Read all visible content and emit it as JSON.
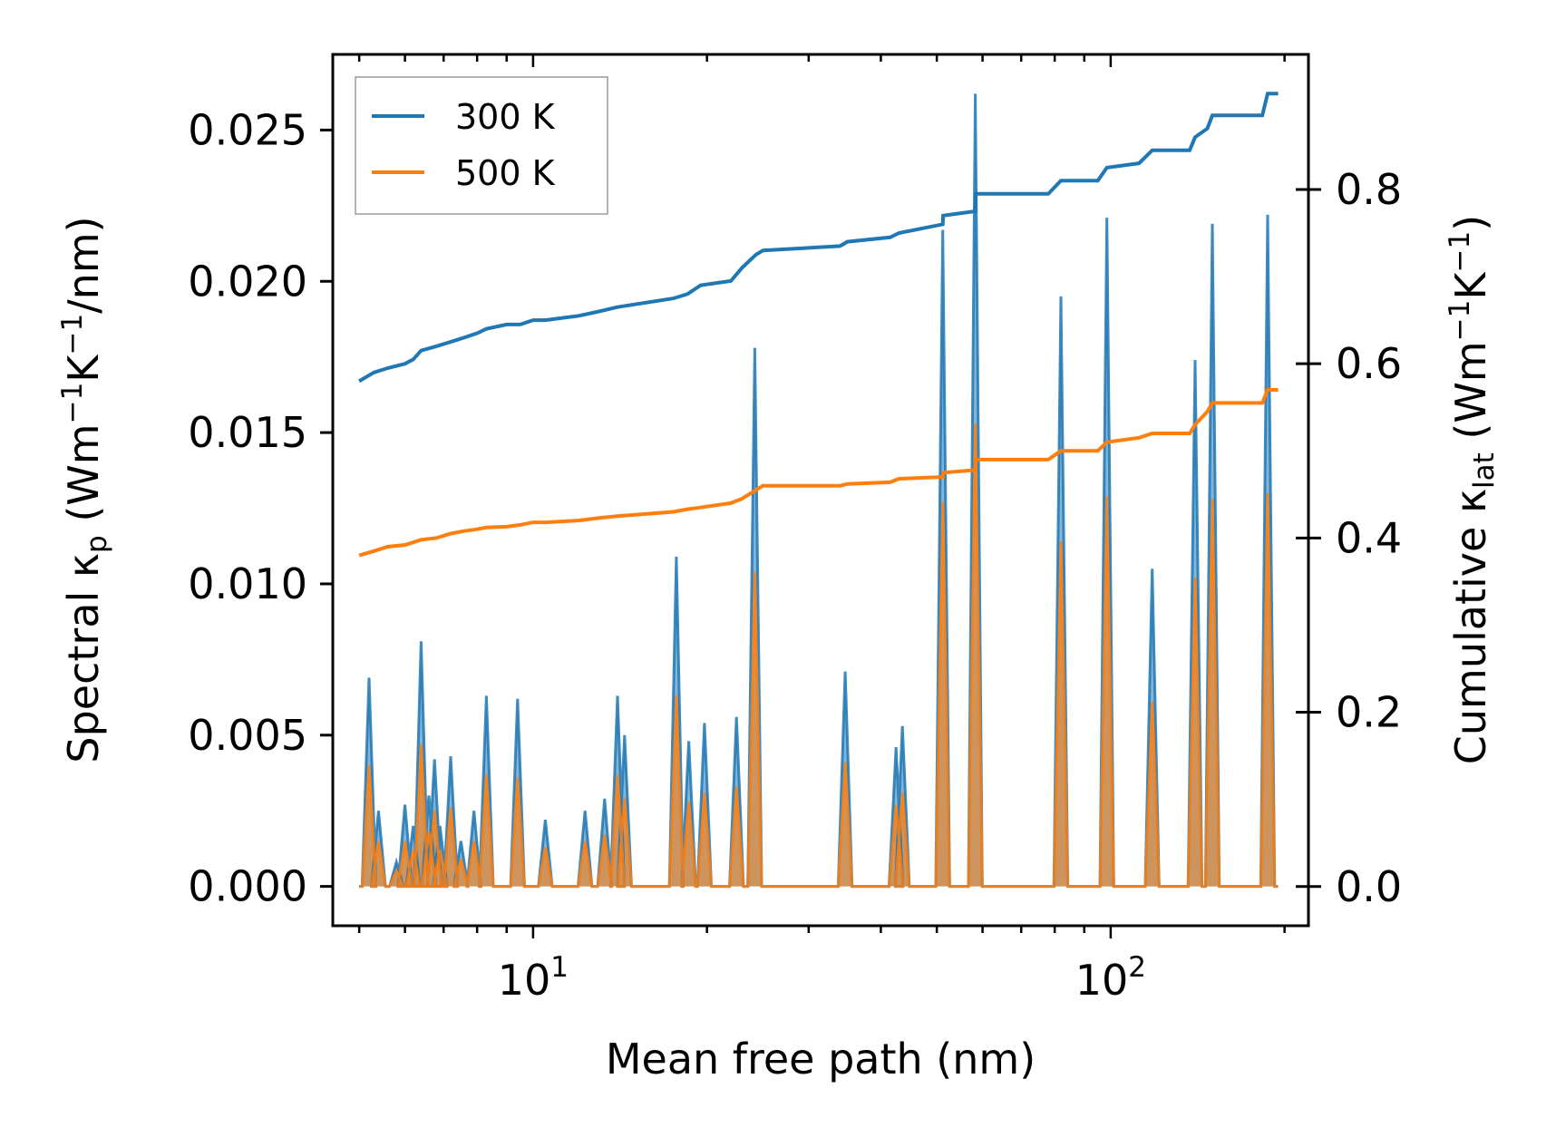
{
  "chart_data": {
    "type": "line",
    "xlabel": "Mean free path (nm)",
    "xscale": "log",
    "xlim": [
      4.5,
      220
    ],
    "x_ticks": [
      {
        "value": 10,
        "base": "10",
        "exp": "1"
      },
      {
        "value": 100,
        "base": "10",
        "exp": "2"
      }
    ],
    "ylabel_left": {
      "prefix": "Spectral κ",
      "sub": "p",
      "unit_open": " (Wm",
      "sup1": "−1",
      "mid": "K",
      "sup2": "−1",
      "tail": "/nm)"
    },
    "ylabel_right": {
      "prefix": "Cumulative κ",
      "sub": "lat",
      "unit_open": " (Wm",
      "sup1": "−1",
      "mid": "K",
      "sup2": "−1",
      "tail": ")"
    },
    "ylim_left": [
      -0.0013,
      0.0275
    ],
    "ylim_right": [
      -0.045,
      0.955
    ],
    "left_ticks": [
      "0.000",
      "0.005",
      "0.010",
      "0.015",
      "0.020",
      "0.025"
    ],
    "right_ticks": [
      "0.0",
      "0.2",
      "0.4",
      "0.6",
      "0.8"
    ],
    "legend": {
      "position": "upper-left",
      "entries": [
        "300 K",
        "500 K"
      ]
    },
    "colors": {
      "300 K": "#1f77b4",
      "500 K": "#ff7f0e"
    },
    "spectral": {
      "peaks": [
        {
          "x": 5.2,
          "a": 0.0069,
          "b": 0.004
        },
        {
          "x": 5.4,
          "a": 0.0025,
          "b": 0.0015
        },
        {
          "x": 5.8,
          "a": 0.0008,
          "b": 0.0005
        },
        {
          "x": 6.0,
          "a": 0.0027,
          "b": 0.0015
        },
        {
          "x": 6.2,
          "a": 0.002,
          "b": 0.0012
        },
        {
          "x": 6.4,
          "a": 0.0081,
          "b": 0.0047
        },
        {
          "x": 6.6,
          "a": 0.003,
          "b": 0.0018
        },
        {
          "x": 6.75,
          "a": 0.0042,
          "b": 0.0025
        },
        {
          "x": 6.9,
          "a": 0.002,
          "b": 0.0012
        },
        {
          "x": 7.2,
          "a": 0.0043,
          "b": 0.0026
        },
        {
          "x": 7.5,
          "a": 0.0015,
          "b": 0.0009
        },
        {
          "x": 7.9,
          "a": 0.0025,
          "b": 0.0015
        },
        {
          "x": 8.3,
          "a": 0.0063,
          "b": 0.0037
        },
        {
          "x": 9.4,
          "a": 0.0062,
          "b": 0.0036
        },
        {
          "x": 10.5,
          "a": 0.0022,
          "b": 0.0013
        },
        {
          "x": 12.3,
          "a": 0.0025,
          "b": 0.0015
        },
        {
          "x": 13.3,
          "a": 0.0029,
          "b": 0.0017
        },
        {
          "x": 14.0,
          "a": 0.0063,
          "b": 0.0037
        },
        {
          "x": 14.4,
          "a": 0.005,
          "b": 0.0029
        },
        {
          "x": 17.7,
          "a": 0.0109,
          "b": 0.0063
        },
        {
          "x": 18.6,
          "a": 0.0048,
          "b": 0.0028
        },
        {
          "x": 19.8,
          "a": 0.0054,
          "b": 0.0031
        },
        {
          "x": 22.5,
          "a": 0.0056,
          "b": 0.0033
        },
        {
          "x": 24.2,
          "a": 0.0178,
          "b": 0.0104
        },
        {
          "x": 34.7,
          "a": 0.0071,
          "b": 0.0041
        },
        {
          "x": 42.5,
          "a": 0.0046,
          "b": 0.0027
        },
        {
          "x": 43.6,
          "a": 0.0053,
          "b": 0.0031
        },
        {
          "x": 51.2,
          "a": 0.0217,
          "b": 0.0127
        },
        {
          "x": 58.3,
          "a": 0.0262,
          "b": 0.0153
        },
        {
          "x": 82.0,
          "a": 0.0195,
          "b": 0.0114
        },
        {
          "x": 98.5,
          "a": 0.0221,
          "b": 0.0129
        },
        {
          "x": 118.0,
          "a": 0.0105,
          "b": 0.0061
        },
        {
          "x": 140.0,
          "a": 0.0174,
          "b": 0.0102
        },
        {
          "x": 150.0,
          "a": 0.0219,
          "b": 0.0128
        },
        {
          "x": 187.0,
          "a": 0.0222,
          "b": 0.013
        }
      ],
      "x_start": 5.0,
      "x_end": 195.0
    },
    "cumulative": {
      "300 K": {
        "x": [
          5.0,
          5.3,
          5.6,
          6.0,
          6.2,
          6.4,
          6.8,
          7.2,
          7.6,
          8.0,
          8.3,
          9.0,
          9.5,
          10.0,
          10.5,
          12.0,
          13.0,
          14.0,
          17.5,
          18.5,
          19.5,
          22.0,
          23.0,
          24.3,
          25.0,
          34.0,
          35.0,
          41.5,
          43.0,
          51.2,
          51.3,
          58.3,
          58.4,
          78.0,
          82.0,
          95.0,
          98.5,
          112.0,
          118.0,
          137.0,
          140.0,
          147.0,
          150.0,
          183.0,
          187.0,
          195.0
        ],
        "y": [
          0.58,
          0.59,
          0.595,
          0.6,
          0.605,
          0.615,
          0.62,
          0.625,
          0.63,
          0.635,
          0.64,
          0.645,
          0.645,
          0.65,
          0.65,
          0.655,
          0.66,
          0.665,
          0.675,
          0.68,
          0.69,
          0.695,
          0.71,
          0.725,
          0.73,
          0.735,
          0.74,
          0.745,
          0.75,
          0.76,
          0.77,
          0.775,
          0.795,
          0.795,
          0.81,
          0.81,
          0.825,
          0.83,
          0.845,
          0.845,
          0.86,
          0.87,
          0.885,
          0.885,
          0.91,
          0.91
        ]
      },
      "500 K": {
        "x": [
          5.0,
          5.3,
          5.6,
          6.0,
          6.2,
          6.4,
          6.8,
          7.2,
          7.6,
          8.0,
          8.3,
          9.0,
          9.5,
          10.0,
          10.5,
          12.0,
          13.0,
          14.0,
          17.5,
          18.5,
          19.5,
          22.0,
          23.0,
          24.3,
          25.0,
          34.0,
          35.0,
          41.5,
          43.0,
          51.2,
          51.3,
          58.3,
          58.4,
          78.0,
          82.0,
          95.0,
          98.5,
          112.0,
          118.0,
          137.0,
          140.0,
          147.0,
          150.0,
          183.0,
          187.0,
          195.0
        ],
        "y": [
          0.38,
          0.385,
          0.39,
          0.392,
          0.395,
          0.398,
          0.4,
          0.405,
          0.408,
          0.41,
          0.412,
          0.413,
          0.415,
          0.418,
          0.418,
          0.42,
          0.423,
          0.425,
          0.43,
          0.433,
          0.435,
          0.44,
          0.445,
          0.455,
          0.46,
          0.46,
          0.462,
          0.464,
          0.468,
          0.47,
          0.475,
          0.478,
          0.49,
          0.49,
          0.5,
          0.5,
          0.51,
          0.515,
          0.52,
          0.52,
          0.53,
          0.545,
          0.555,
          0.555,
          0.57,
          0.57
        ]
      }
    }
  }
}
